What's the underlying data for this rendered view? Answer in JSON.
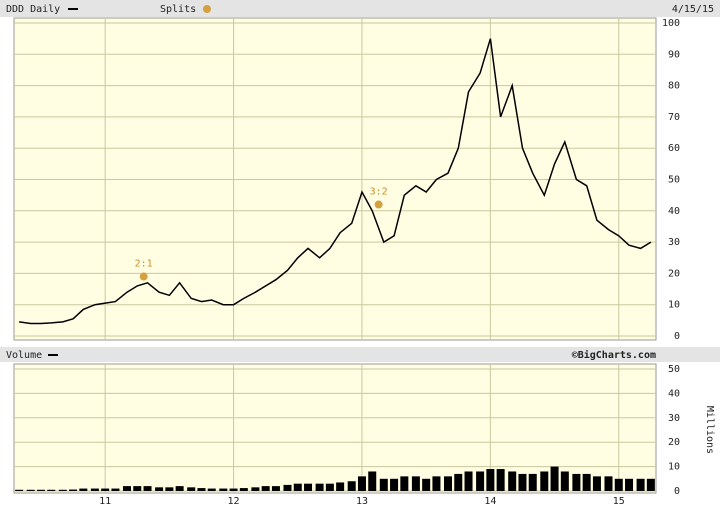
{
  "chart_data": [
    {
      "type": "line",
      "title": "DDD Daily",
      "splits_label": "Splits",
      "date": "4/15/15",
      "color": "#000000",
      "grid": true,
      "x": [
        2010.33,
        2010.42,
        2010.5,
        2010.58,
        2010.67,
        2010.75,
        2010.83,
        2010.92,
        2011.0,
        2011.08,
        2011.17,
        2011.25,
        2011.33,
        2011.42,
        2011.5,
        2011.58,
        2011.67,
        2011.75,
        2011.83,
        2011.92,
        2012.0,
        2012.08,
        2012.17,
        2012.25,
        2012.33,
        2012.42,
        2012.5,
        2012.58,
        2012.67,
        2012.75,
        2012.83,
        2012.92,
        2013.0,
        2013.08,
        2013.17,
        2013.25,
        2013.33,
        2013.42,
        2013.5,
        2013.58,
        2013.67,
        2013.75,
        2013.83,
        2013.92,
        2014.0,
        2014.08,
        2014.17,
        2014.25,
        2014.33,
        2014.42,
        2014.5,
        2014.58,
        2014.67,
        2014.75,
        2014.83,
        2014.92,
        2015.0,
        2015.08,
        2015.17,
        2015.25
      ],
      "values": [
        4.5,
        4,
        4,
        4.2,
        4.5,
        5.5,
        8.5,
        10,
        10.5,
        11,
        14,
        16,
        17,
        14,
        13,
        17,
        12,
        11,
        11.5,
        10,
        10,
        12,
        14,
        16,
        18,
        21,
        25,
        28,
        25,
        28,
        33,
        36,
        46,
        40,
        30,
        32,
        45,
        48,
        46,
        50,
        52,
        60,
        78,
        84,
        95,
        70,
        80,
        60,
        52,
        45,
        55,
        62,
        50,
        48,
        37,
        34,
        32,
        29,
        28,
        30
      ],
      "annotations": [
        {
          "text": "2:1",
          "x": 2011.3,
          "y": 19
        },
        {
          "text": "3:2",
          "x": 2013.13,
          "y": 42
        }
      ],
      "xlim": [
        2010.29,
        2015.29
      ],
      "xticks": [
        {
          "value": 2011,
          "label": "11"
        },
        {
          "value": 2012,
          "label": "12"
        },
        {
          "value": 2013,
          "label": "13"
        },
        {
          "value": 2014,
          "label": "14"
        },
        {
          "value": 2015,
          "label": "15"
        }
      ],
      "ylim": [
        0,
        100
      ],
      "yticks": [
        0,
        10,
        20,
        30,
        40,
        50,
        60,
        70,
        80,
        90,
        100
      ]
    },
    {
      "type": "bar",
      "title": "Volume",
      "credit": "©BigCharts.com",
      "ylabel": "Millions",
      "color": "#000000",
      "grid": true,
      "x": [
        2010.33,
        2010.42,
        2010.5,
        2010.58,
        2010.67,
        2010.75,
        2010.83,
        2010.92,
        2011.0,
        2011.08,
        2011.17,
        2011.25,
        2011.33,
        2011.42,
        2011.5,
        2011.58,
        2011.67,
        2011.75,
        2011.83,
        2011.92,
        2012.0,
        2012.08,
        2012.17,
        2012.25,
        2012.33,
        2012.42,
        2012.5,
        2012.58,
        2012.67,
        2012.75,
        2012.83,
        2012.92,
        2013.0,
        2013.08,
        2013.17,
        2013.25,
        2013.33,
        2013.42,
        2013.5,
        2013.58,
        2013.67,
        2013.75,
        2013.83,
        2013.92,
        2014.0,
        2014.08,
        2014.17,
        2014.25,
        2014.33,
        2014.42,
        2014.5,
        2014.58,
        2014.67,
        2014.75,
        2014.83,
        2014.92,
        2015.0,
        2015.08,
        2015.17,
        2015.25
      ],
      "values": [
        0.5,
        0.5,
        0.5,
        0.5,
        0.5,
        0.6,
        1,
        1,
        1,
        1,
        2,
        2,
        2,
        1.5,
        1.5,
        2,
        1.5,
        1.2,
        1,
        1,
        1,
        1.2,
        1.5,
        2,
        2,
        2.5,
        3,
        3,
        3,
        3,
        3.5,
        4,
        6,
        8,
        5,
        5,
        6,
        6,
        5,
        6,
        6,
        7,
        8,
        8,
        9,
        9,
        8,
        7,
        7,
        8,
        10,
        8,
        7,
        7,
        6,
        6,
        5,
        5,
        5,
        5
      ],
      "xlim": [
        2010.29,
        2015.29
      ],
      "xticks": [
        {
          "value": 2011,
          "label": "11"
        },
        {
          "value": 2012,
          "label": "12"
        },
        {
          "value": 2013,
          "label": "13"
        },
        {
          "value": 2014,
          "label": "14"
        },
        {
          "value": 2015,
          "label": "15"
        }
      ],
      "ylim": [
        0,
        50
      ],
      "yticks": [
        0,
        10,
        20,
        30,
        40,
        50
      ]
    }
  ]
}
